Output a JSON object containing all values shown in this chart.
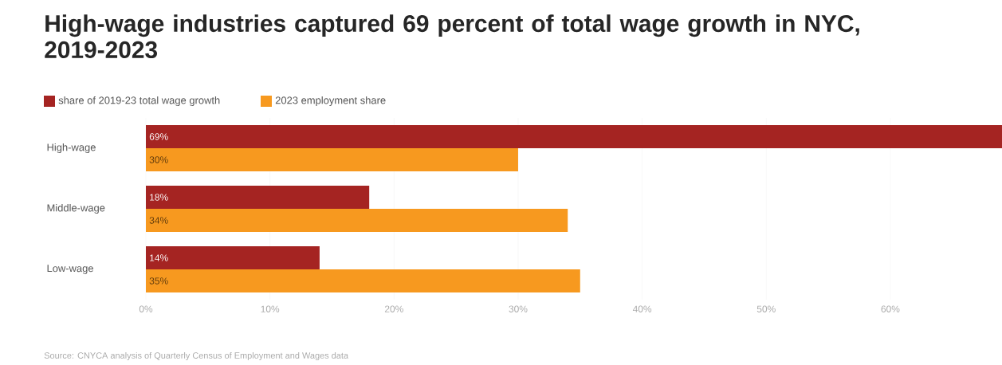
{
  "chart_data": {
    "type": "bar",
    "orientation": "horizontal",
    "title": "High-wage industries captured 69 percent of total wage growth in NYC, 2019-2023",
    "categories": [
      "High-wage",
      "Middle-wage",
      "Low-wage"
    ],
    "series": [
      {
        "name": "share of 2019-23 total wage growth",
        "color": "#a52422",
        "values": [
          69,
          18,
          14
        ],
        "value_labels": [
          "69%",
          "18%",
          "14%"
        ]
      },
      {
        "name": "2023 employment share",
        "color": "#f7991f",
        "values": [
          30,
          34,
          35
        ],
        "value_labels": [
          "30%",
          "34%",
          "35%"
        ]
      }
    ],
    "xlim": [
      0,
      69
    ],
    "xticks": [
      {
        "value": 0,
        "label": "0%"
      },
      {
        "value": 10,
        "label": "10%"
      },
      {
        "value": 20,
        "label": "20%"
      },
      {
        "value": 30,
        "label": "30%"
      },
      {
        "value": 40,
        "label": "40%"
      },
      {
        "value": 50,
        "label": "50%"
      },
      {
        "value": 60,
        "label": "60%"
      }
    ],
    "grid": "x",
    "legend": "top left",
    "annotations": [
      "Source: CNYCA analysis of Quarterly Census of Employment and Wages data"
    ]
  }
}
